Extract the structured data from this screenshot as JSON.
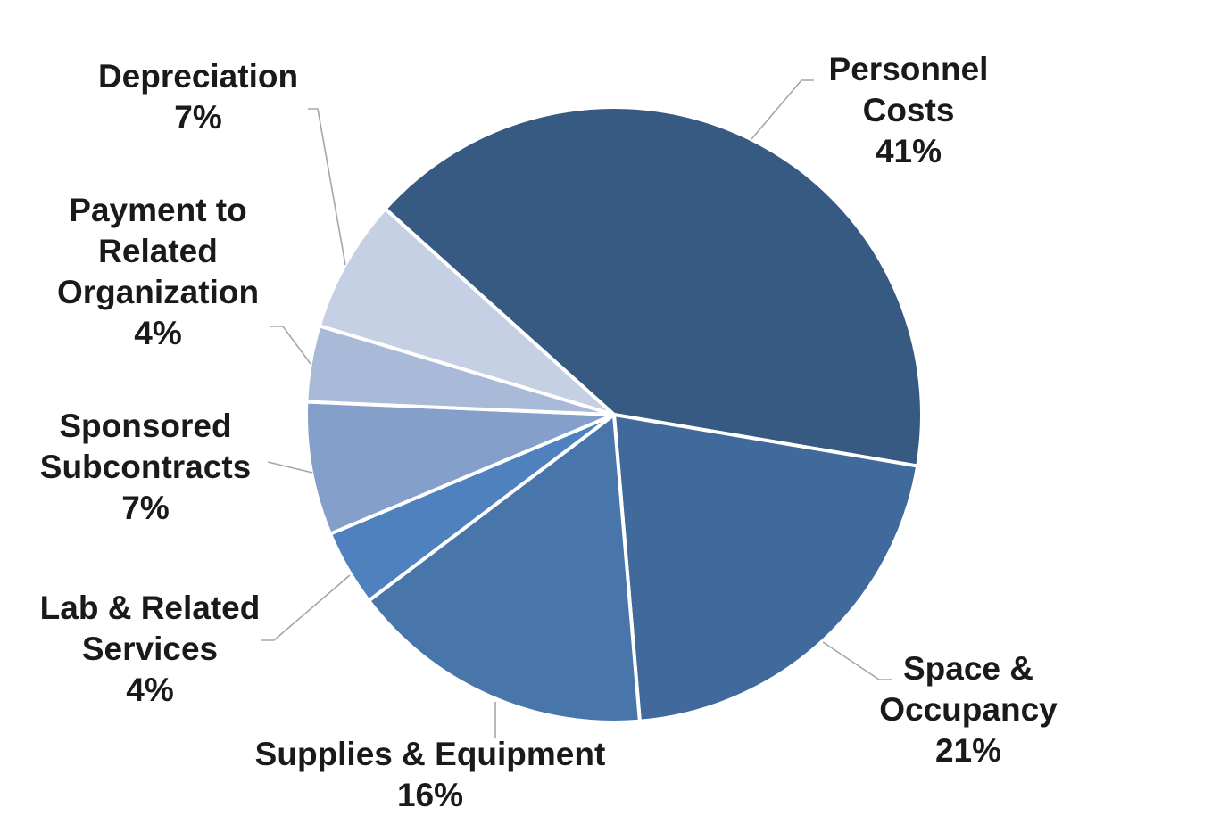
{
  "chart_data": {
    "type": "pie",
    "title": "",
    "start_angle_deg": -48,
    "direction": "clockwise",
    "slices": [
      {
        "name": "Personnel Costs",
        "label_lines": [
          "Personnel",
          "Costs",
          "41%"
        ],
        "value": 41,
        "color": "#375a83"
      },
      {
        "name": "Space & Occupancy",
        "label_lines": [
          "Space &",
          "Occupancy",
          "21%"
        ],
        "value": 21,
        "color": "#3f6a9b"
      },
      {
        "name": "Supplies & Equipment",
        "label_lines": [
          "Supplies & Equipment",
          "16%"
        ],
        "value": 16,
        "color": "#4876ab"
      },
      {
        "name": "Lab & Related Services",
        "label_lines": [
          "Lab & Related",
          "Services",
          "4%"
        ],
        "value": 4,
        "color": "#4e81bd"
      },
      {
        "name": "Sponsored Subcontracts",
        "label_lines": [
          "Sponsored",
          "Subcontracts",
          "7%"
        ],
        "value": 7,
        "color": "#839fca"
      },
      {
        "name": "Payment to Related Organization",
        "label_lines": [
          "Payment to",
          "Related",
          "Organization",
          "4%"
        ],
        "value": 4,
        "color": "#a9b9d8"
      },
      {
        "name": "Depreciation",
        "label_lines": [
          "Depreciation",
          "7%"
        ],
        "value": 7,
        "color": "#c6d0e4"
      }
    ]
  }
}
